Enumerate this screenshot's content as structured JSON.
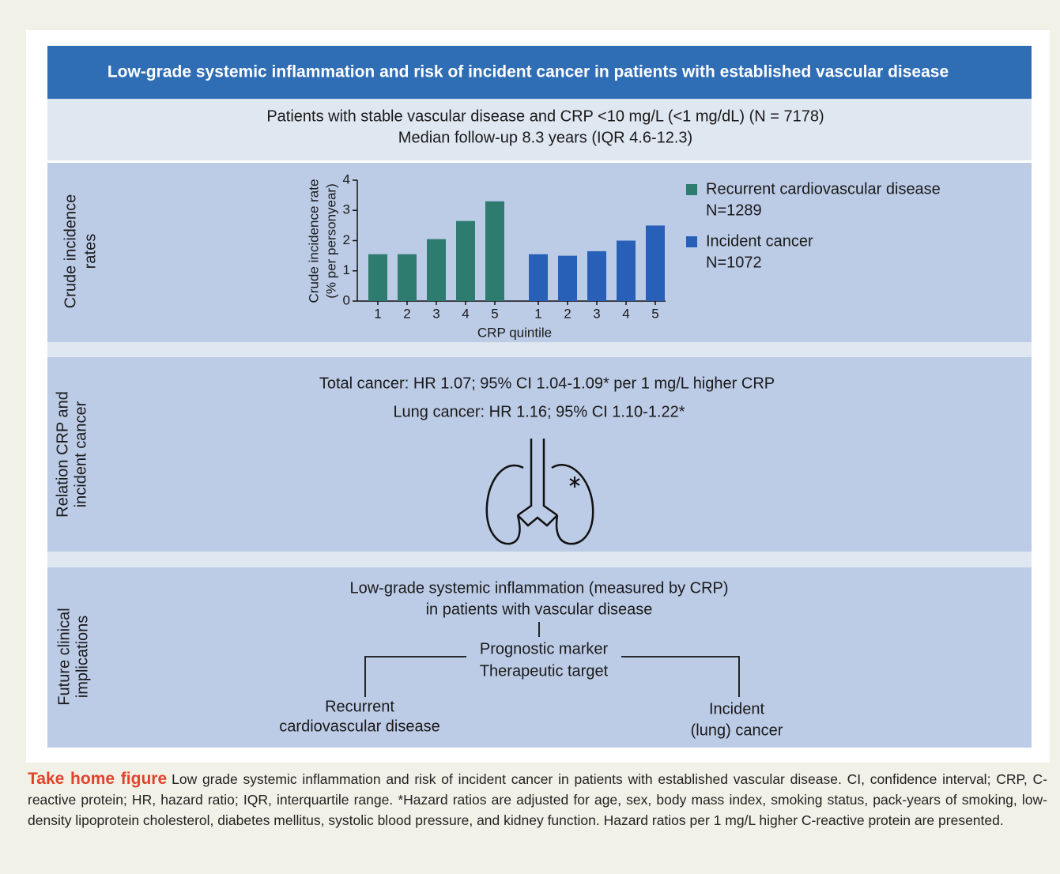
{
  "header": {
    "title": "Low-grade systemic inflammation and risk of incident cancer in patients with established vascular disease"
  },
  "cohort": {
    "lines": [
      "Patients with stable vascular disease and CRP <10 mg/L (<1 mg/dL) (N = 7178)",
      "Median follow-up 8.3 years (IQR 4.6-12.3)"
    ]
  },
  "section_labels": [
    [
      "Crude incidence",
      "rates"
    ],
    [
      "Relation CRP and",
      "incident cancer"
    ],
    [
      "Future clinical",
      "implications"
    ]
  ],
  "chart_data": {
    "type": "bar",
    "ylabel": [
      "Crude incidence rate",
      "(% per personyear)"
    ],
    "xlabel": "CRP quintile",
    "categories": [
      "1",
      "2",
      "3",
      "4",
      "5"
    ],
    "ylim": [
      0,
      4
    ],
    "yticks": [
      0,
      1,
      2,
      3,
      4
    ],
    "series": [
      {
        "name": "Recurrent cardiovascular disease",
        "n_label": "N=1289",
        "color": "#2e7b6f",
        "values": [
          1.55,
          1.55,
          2.05,
          2.65,
          3.3
        ]
      },
      {
        "name": "Incident cancer",
        "n_label": "N=1072",
        "color": "#2860b8",
        "values": [
          1.55,
          1.5,
          1.65,
          2.0,
          2.5
        ]
      }
    ]
  },
  "relation": {
    "lines": [
      "Total cancer: HR 1.07; 95% CI 1.04-1.09* per 1 mg/L higher CRP",
      "Lung cancer: HR 1.16; 95% CI 1.10-1.22*"
    ]
  },
  "implications": {
    "top": [
      "Low-grade systemic inflammation (measured by CRP)",
      "in patients with vascular disease"
    ],
    "center": [
      "Prognostic marker",
      "Therapeutic target"
    ],
    "left": [
      "Recurrent",
      "cardiovascular disease"
    ],
    "right": [
      "Incident",
      "(lung) cancer"
    ]
  },
  "caption": {
    "lead": "Take home figure",
    "text": "Low grade systemic inflammation and risk of incident cancer in patients with established vascular disease. CI, confidence interval; CRP, C-reactive protein; HR, hazard ratio; IQR, interquartile range. *Hazard ratios are adjusted for age, sex, body mass index, smoking status, pack-years of smoking, low-density lipoprotein cholesterol, diabetes mellitus, systolic blood pressure, and kidney function. Hazard ratios per 1 mg/L higher C-reactive protein are presented."
  }
}
